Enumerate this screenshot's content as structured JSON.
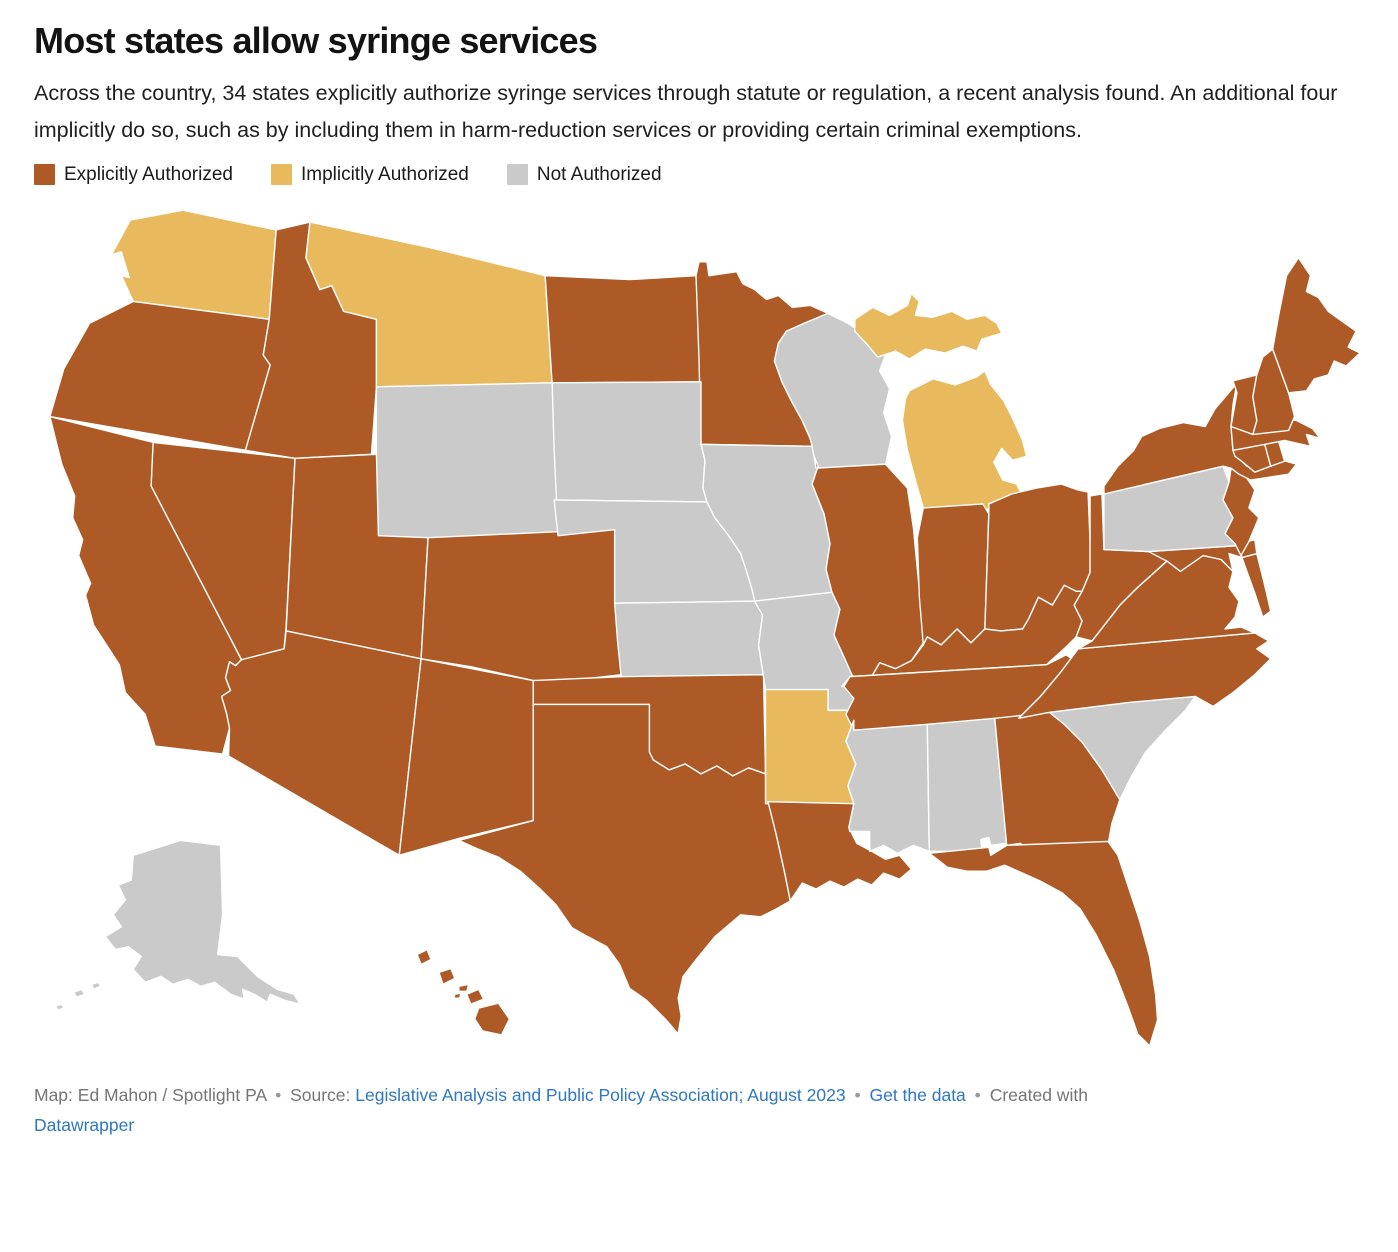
{
  "header": {
    "title": "Most states allow syringe services",
    "description": "Across the country, 34 states explicitly authorize syringe services through statute or regulation, a recent analysis found. An additional four implicitly do so, such as by including them in harm-reduction services or providing certain criminal exemptions."
  },
  "legend": {
    "items": [
      {
        "id": "explicit",
        "label": "Explicitly Authorized",
        "color": "#ad5a26"
      },
      {
        "id": "implicit",
        "label": "Implicitly Authorized",
        "color": "#e8b95d"
      },
      {
        "id": "not_authorized",
        "label": "Not Authorized",
        "color": "#cacaca"
      }
    ]
  },
  "chart_data": {
    "type": "choropleth",
    "title": "Most states allow syringe services",
    "categories": [
      "Explicitly Authorized",
      "Implicitly Authorized",
      "Not Authorized"
    ],
    "category_colors": {
      "Explicitly Authorized": "#ad5a26",
      "Implicitly Authorized": "#e8b95d",
      "Not Authorized": "#cacaca"
    },
    "counts": {
      "Explicitly Authorized": 34,
      "Implicitly Authorized": 4,
      "Not Authorized": 12
    },
    "states": {
      "WA": "Implicitly Authorized",
      "OR": "Explicitly Authorized",
      "CA": "Explicitly Authorized",
      "NV": "Explicitly Authorized",
      "ID": "Explicitly Authorized",
      "MT": "Implicitly Authorized",
      "WY": "Not Authorized",
      "UT": "Explicitly Authorized",
      "CO": "Explicitly Authorized",
      "AZ": "Explicitly Authorized",
      "NM": "Explicitly Authorized",
      "ND": "Explicitly Authorized",
      "SD": "Not Authorized",
      "NE": "Not Authorized",
      "KS": "Not Authorized",
      "OK": "Explicitly Authorized",
      "TX": "Explicitly Authorized",
      "MN": "Explicitly Authorized",
      "IA": "Not Authorized",
      "MO": "Not Authorized",
      "AR": "Implicitly Authorized",
      "LA": "Explicitly Authorized",
      "WI": "Not Authorized",
      "IL": "Explicitly Authorized",
      "MI": "Implicitly Authorized",
      "IN": "Explicitly Authorized",
      "OH": "Explicitly Authorized",
      "KY": "Explicitly Authorized",
      "TN": "Explicitly Authorized",
      "MS": "Not Authorized",
      "AL": "Not Authorized",
      "GA": "Explicitly Authorized",
      "FL": "Explicitly Authorized",
      "SC": "Not Authorized",
      "NC": "Explicitly Authorized",
      "VA": "Explicitly Authorized",
      "WV": "Explicitly Authorized",
      "MD": "Explicitly Authorized",
      "DE": "Explicitly Authorized",
      "PA": "Not Authorized",
      "NJ": "Explicitly Authorized",
      "NY": "Explicitly Authorized",
      "CT": "Explicitly Authorized",
      "RI": "Explicitly Authorized",
      "MA": "Explicitly Authorized",
      "VT": "Explicitly Authorized",
      "NH": "Explicitly Authorized",
      "ME": "Explicitly Authorized",
      "AK": "Not Authorized",
      "HI": "Explicitly Authorized"
    }
  },
  "footer": {
    "lines": [
      [
        {
          "type": "text",
          "text": "Map: Ed Mahon / Spotlight PA"
        },
        {
          "type": "sep",
          "text": "•"
        },
        {
          "type": "text",
          "text": "Source:"
        },
        {
          "type": "link",
          "text": "Legislative Analysis and Public Policy Association; August 2023"
        },
        {
          "type": "sep",
          "text": "•"
        },
        {
          "type": "link",
          "text": "Get the data"
        },
        {
          "type": "sep",
          "text": "•"
        },
        {
          "type": "text",
          "text": "Created with"
        }
      ],
      [
        {
          "type": "link",
          "text": "Datawrapper"
        }
      ]
    ],
    "link_color": "#2d77c4"
  }
}
